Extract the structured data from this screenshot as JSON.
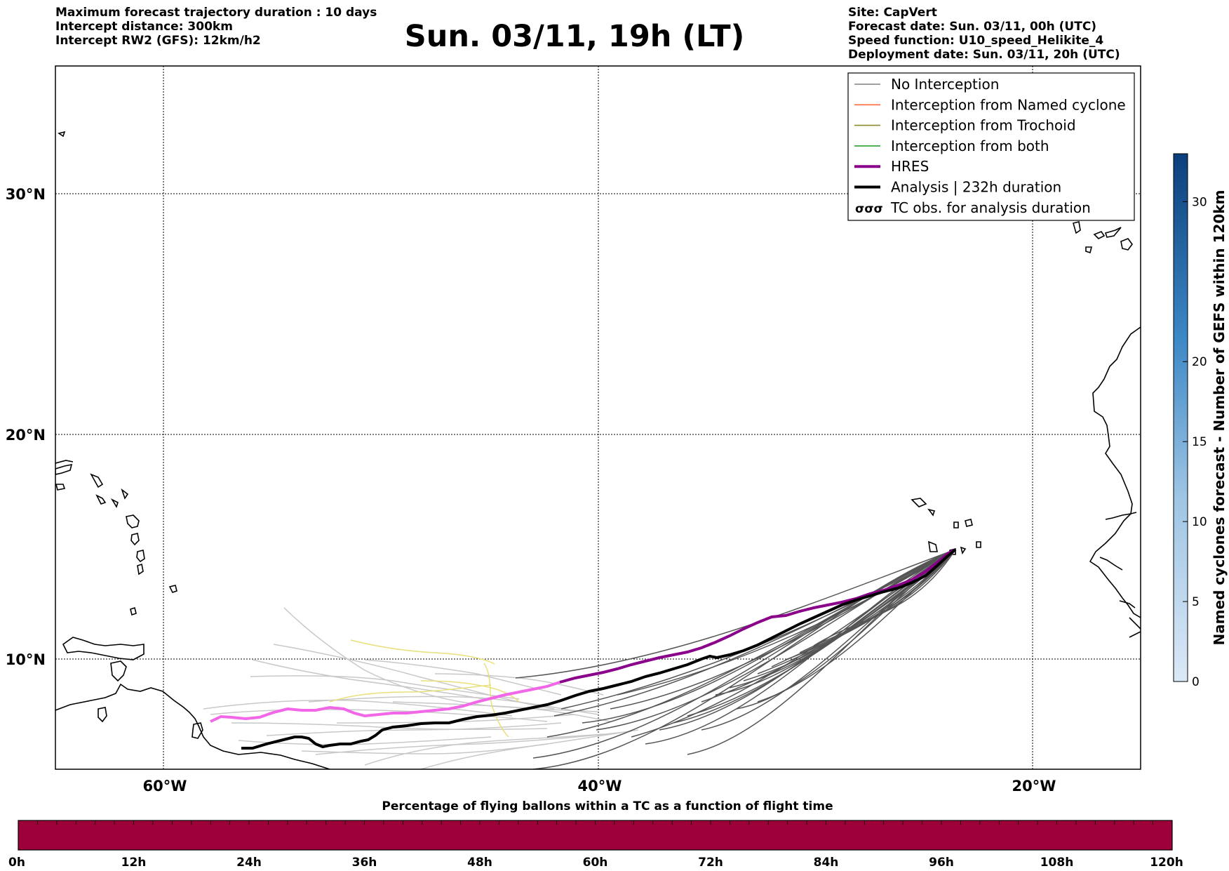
{
  "header": {
    "left_lines": [
      "Maximum forecast trajectory duration : 10 days",
      "Intercept distance: 300km",
      "Intercept RW2 (GFS):  12km/h2"
    ],
    "title": "Sun. 03/11, 19h (LT)",
    "right_lines": [
      "Site: CapVert",
      "Forecast date: Sun. 03/11, 00h (UTC)",
      "Speed function: U10_speed_Helikite_4",
      "Deployment date: Sun. 03/11, 20h (UTC)"
    ]
  },
  "map": {
    "lat_labels": [
      "30°N",
      "20°N",
      "10°N"
    ],
    "lon_labels": [
      "60°W",
      "40°W",
      "20°W"
    ],
    "legend": [
      {
        "label": "No Interception",
        "color": "#808080",
        "style": "thin"
      },
      {
        "label": "Interception from Named cyclone",
        "color": "#ff6a3d",
        "style": "thin"
      },
      {
        "label": "Interception from Trochoid",
        "color": "#8b8b2e",
        "style": "thin"
      },
      {
        "label": "Interception from both",
        "color": "#2ca02c",
        "style": "thin"
      },
      {
        "label": "HRES",
        "color": "#8b008b",
        "style": "thick"
      },
      {
        "label": "Analysis | 232h duration",
        "color": "#000000",
        "style": "thick"
      },
      {
        "label": "TC obs. for analysis duration",
        "color": "#000000",
        "style": "symbol"
      }
    ],
    "colors": {
      "analysis": "#000000",
      "hres_forecast": "#8b008b",
      "hres_extended": "#f266e8",
      "ensemble_dark": "#555555",
      "ensemble_light": "#c8c8c8",
      "trochoid": "#e8e07a"
    }
  },
  "colorbar_right": {
    "label": "Named cyclones forecast - Number of GEFS within 120km",
    "ticks": [
      "0",
      "5",
      "10",
      "15",
      "20",
      "30"
    ],
    "color_low": "#d6e6f5",
    "color_high": "#0b3f7c"
  },
  "colorbar_bottom": {
    "title": "Percentage of flying ballons within a TC as a function of flight time",
    "ticks": [
      "0h",
      "12h",
      "24h",
      "36h",
      "48h",
      "60h",
      "72h",
      "84h",
      "96h",
      "108h",
      "120h"
    ],
    "fill_color": "#9e003a"
  }
}
